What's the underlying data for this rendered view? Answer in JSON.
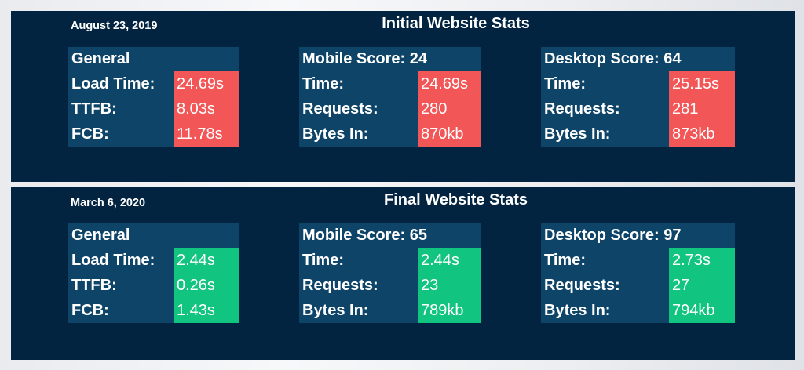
{
  "initial": {
    "date": "August 23, 2019",
    "title": "Initial Website Stats",
    "general": {
      "heading": "General",
      "rows": [
        {
          "label": "Load Time:",
          "value": "24.69s"
        },
        {
          "label": "TTFB:",
          "value": "8.03s"
        },
        {
          "label": "FCB:",
          "value": "11.78s"
        }
      ]
    },
    "mobile": {
      "heading": "Mobile Score: 24",
      "rows": [
        {
          "label": "Time:",
          "value": "24.69s"
        },
        {
          "label": "Requests:",
          "value": "280"
        },
        {
          "label": "Bytes In:",
          "value": "870kb"
        }
      ]
    },
    "desktop": {
      "heading": "Desktop Score: 64",
      "rows": [
        {
          "label": "Time:",
          "value": "25.15s"
        },
        {
          "label": "Requests:",
          "value": "281"
        },
        {
          "label": "Bytes In:",
          "value": " 873kb"
        }
      ]
    },
    "value_color": "#f35656"
  },
  "final": {
    "date": "March 6, 2020",
    "title": "Final Website Stats",
    "general": {
      "heading": "General",
      "rows": [
        {
          "label": "Load Time:",
          "value": "2.44s"
        },
        {
          "label": "TTFB:",
          "value": "0.26s"
        },
        {
          "label": "FCB:",
          "value": "1.43s"
        }
      ]
    },
    "mobile": {
      "heading": "Mobile Score: 65",
      "rows": [
        {
          "label": "Time:",
          "value": "2.44s"
        },
        {
          "label": "Requests:",
          "value": "23"
        },
        {
          "label": "Bytes In:",
          "value": "789kb"
        }
      ]
    },
    "desktop": {
      "heading": "Desktop Score: 97",
      "rows": [
        {
          "label": "Time:",
          "value": "2.73s"
        },
        {
          "label": "Requests:",
          "value": "27"
        },
        {
          "label": "Bytes In:",
          "value": "794kb"
        }
      ]
    },
    "value_color": "#11c47f"
  },
  "colors": {
    "panel_bg": "#022440",
    "label_bg": "#0d4468"
  }
}
